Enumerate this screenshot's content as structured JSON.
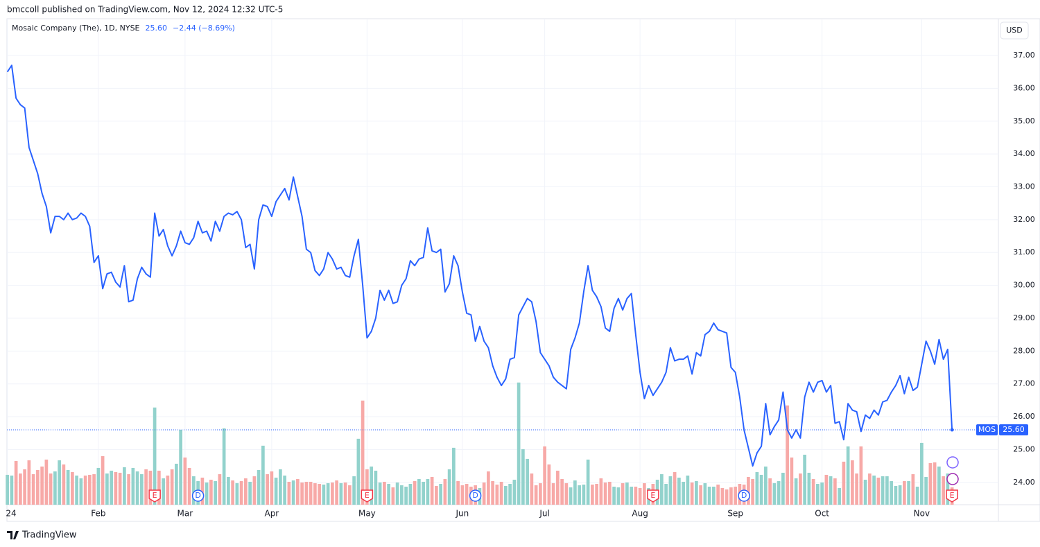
{
  "header": {
    "publisher": "bmccoll published on TradingView.com, Nov 12, 2024 12:32 UTC-5",
    "footer": "TradingView"
  },
  "chart_data": {
    "type": "line",
    "title": "Mosaic Company (The), 1D, NYSE",
    "last_label": "25.60",
    "change": "−2.44 (−8.69%)",
    "currency": "USD",
    "grid": true,
    "ylim": [
      23.32,
      38.12
    ],
    "yticks": [
      {
        "value": 24,
        "label": "24.00"
      },
      {
        "value": 25,
        "label": "25.00"
      },
      {
        "value": 26,
        "label": "26.00"
      },
      {
        "value": 27,
        "label": "27.00"
      },
      {
        "value": 28,
        "label": "28.00"
      },
      {
        "value": 29,
        "label": "29.00"
      },
      {
        "value": 30,
        "label": "30.00"
      },
      {
        "value": 31,
        "label": "31.00"
      },
      {
        "value": 32,
        "label": "32.00"
      },
      {
        "value": 33,
        "label": "33.00"
      },
      {
        "value": 34,
        "label": "34.00"
      },
      {
        "value": 35,
        "label": "35.00"
      },
      {
        "value": 36,
        "label": "36.00"
      },
      {
        "value": 37,
        "label": "37.00"
      }
    ],
    "xlim": [
      -0.1,
      228.7
    ],
    "xticks": [
      {
        "value": 0,
        "label": "24"
      },
      {
        "value": 21,
        "label": "Feb"
      },
      {
        "value": 41,
        "label": "Mar"
      },
      {
        "value": 61,
        "label": "Apr"
      },
      {
        "value": 83,
        "label": "May"
      },
      {
        "value": 105,
        "label": "Jun"
      },
      {
        "value": 124,
        "label": "Jul"
      },
      {
        "value": 146,
        "label": "Aug"
      },
      {
        "value": 168,
        "label": "Sep"
      },
      {
        "value": 188,
        "label": "Oct"
      },
      {
        "value": 211,
        "label": "Nov"
      }
    ],
    "series": [
      {
        "name": "MOS",
        "color": "#2962ff",
        "values": [
          36.5,
          36.7,
          35.7,
          35.5,
          35.4,
          34.2,
          33.8,
          33.4,
          32.8,
          32.4,
          31.6,
          32.1,
          32.1,
          32.0,
          32.2,
          32.0,
          32.05,
          32.2,
          32.1,
          31.8,
          30.7,
          30.9,
          29.9,
          30.35,
          30.4,
          30.1,
          29.95,
          30.6,
          29.5,
          29.55,
          30.2,
          30.55,
          30.35,
          30.25,
          32.2,
          31.5,
          31.7,
          31.2,
          30.9,
          31.2,
          31.65,
          31.3,
          31.25,
          31.45,
          31.95,
          31.6,
          31.65,
          31.35,
          31.95,
          31.65,
          32.1,
          32.2,
          32.15,
          32.25,
          32.0,
          31.15,
          31.25,
          30.5,
          32.0,
          32.45,
          32.4,
          32.1,
          32.55,
          32.75,
          32.95,
          32.6,
          33.3,
          32.7,
          32.1,
          31.1,
          31.0,
          30.45,
          30.3,
          30.5,
          31.0,
          30.8,
          30.5,
          30.55,
          30.3,
          30.25,
          30.9,
          31.4,
          30.0,
          28.4,
          28.6,
          29.0,
          29.85,
          29.55,
          29.85,
          29.45,
          29.5,
          30.0,
          30.2,
          30.75,
          30.6,
          30.8,
          30.85,
          31.75,
          31.05,
          31.0,
          31.1,
          29.8,
          30.05,
          30.9,
          30.6,
          29.8,
          29.15,
          29.1,
          28.3,
          28.75,
          28.3,
          28.1,
          27.55,
          27.2,
          26.95,
          27.15,
          27.75,
          27.8,
          29.1,
          29.35,
          29.6,
          29.5,
          28.9,
          27.95,
          27.75,
          27.55,
          27.2,
          27.05,
          26.95,
          26.85,
          28.05,
          28.4,
          28.85,
          29.8,
          30.6,
          29.85,
          29.65,
          29.35,
          28.7,
          28.6,
          29.3,
          29.6,
          29.25,
          29.6,
          29.75,
          28.5,
          27.35,
          26.55,
          26.95,
          26.65,
          26.85,
          27.05,
          27.35,
          28.1,
          27.7,
          27.75,
          27.75,
          27.85,
          27.3,
          27.95,
          27.85,
          28.5,
          28.6,
          28.85,
          28.65,
          28.6,
          28.55,
          27.5,
          27.35,
          26.6,
          25.6,
          25.05,
          24.5,
          24.9,
          25.1,
          26.4,
          25.45,
          25.7,
          25.9,
          26.75,
          25.6,
          25.35,
          25.6,
          25.35,
          26.6,
          27.05,
          26.75,
          27.05,
          27.1,
          26.75,
          26.95,
          25.8,
          25.85,
          25.3,
          26.4,
          26.2,
          26.15,
          25.55,
          26.05,
          25.95,
          26.2,
          26.05,
          26.45,
          26.5,
          26.75,
          26.95,
          27.25,
          26.7,
          27.2,
          26.8,
          26.9,
          27.6,
          28.3,
          28.0,
          27.6,
          28.35,
          27.75,
          28.05,
          25.6
        ]
      }
    ],
    "volume": {
      "ylim": [
        0,
        70
      ],
      "up_color": "#92d2cc",
      "down_color": "#f7a9a7",
      "values": [
        4.3,
        4.2,
        6.3,
        4.5,
        5.1,
        6.4,
        4.4,
        5.0,
        5.5,
        6.5,
        4.5,
        4.8,
        6.4,
        5.8,
        5.0,
        4.7,
        4.2,
        3.8,
        4.2,
        4.3,
        4.4,
        5.3,
        7.0,
        4.5,
        4.9,
        4.7,
        4.6,
        5.4,
        4.4,
        5.3,
        4.8,
        4.4,
        5.1,
        4.9,
        14.0,
        4.9,
        3.8,
        4.2,
        5.1,
        5.9,
        10.8,
        6.8,
        5.3,
        4.1,
        3.4,
        3.9,
        3.2,
        3.6,
        3.4,
        4.4,
        11.0,
        4.0,
        3.5,
        3.1,
        3.4,
        3.8,
        3.3,
        4.1,
        5.0,
        8.5,
        4.4,
        4.8,
        3.9,
        5.1,
        4.2,
        3.3,
        3.5,
        3.7,
        3.2,
        3.3,
        3.3,
        3.1,
        3.0,
        2.9,
        3.1,
        3.2,
        3.5,
        3.1,
        3.2,
        2.8,
        4.1,
        9.5,
        15.0,
        5.1,
        5.5,
        4.9,
        3.2,
        3.3,
        3.0,
        2.5,
        3.2,
        2.8,
        2.6,
        3.0,
        3.4,
        3.7,
        3.3,
        3.7,
        4.0,
        2.7,
        3.0,
        3.7,
        5.1,
        8.2,
        3.4,
        2.8,
        3.0,
        2.6,
        2.8,
        2.4,
        3.2,
        4.8,
        3.4,
        2.9,
        3.3,
        2.7,
        3.0,
        3.6,
        17.6,
        8.0,
        6.6,
        4.5,
        2.8,
        3.1,
        8.4,
        5.8,
        3.1,
        4.9,
        3.7,
        3.1,
        2.5,
        3.5,
        2.8,
        2.9,
        6.5,
        2.9,
        3.0,
        3.8,
        3.2,
        3.3,
        2.6,
        2.5,
        3.1,
        3.2,
        2.6,
        2.6,
        2.4,
        3.1,
        2.4,
        3.0,
        3.6,
        4.4,
        3.0,
        4.1,
        4.7,
        3.9,
        3.3,
        4.2,
        3.2,
        3.4,
        2.8,
        3.1,
        2.6,
        2.6,
        2.9,
        2.4,
        2.2,
        2.5,
        2.6,
        3.0,
        2.9,
        4.0,
        3.7,
        4.7,
        4.3,
        5.5,
        3.8,
        3.1,
        3.4,
        4.6,
        14.3,
        6.8,
        3.8,
        4.5,
        7.2,
        4.6,
        3.7,
        3.0,
        3.2,
        4.3,
        4.1,
        3.8,
        2.4,
        6.2,
        8.4,
        6.4,
        4.5,
        8.4,
        3.6,
        4.5,
        4.2,
        3.9,
        4.1,
        4.1,
        3.4,
        2.7,
        2.8,
        3.4,
        3.4,
        4.4,
        2.6,
        8.9,
        4.0,
        6.0,
        6.1,
        5.5,
        4.1,
        4.5,
        2.5
      ]
    },
    "events": [
      {
        "label": "E",
        "index": 34,
        "color": "#f23645"
      },
      {
        "label": "D",
        "index": 44,
        "color": "#2962ff"
      },
      {
        "label": "E",
        "index": 83,
        "color": "#f23645"
      },
      {
        "label": "D",
        "index": 108,
        "color": "#2962ff"
      },
      {
        "label": "E",
        "index": 149,
        "color": "#f23645"
      },
      {
        "label": "D",
        "index": 170,
        "color": "#2962ff"
      },
      {
        "label": "E",
        "index": 218,
        "color": "#f23645"
      }
    ]
  }
}
